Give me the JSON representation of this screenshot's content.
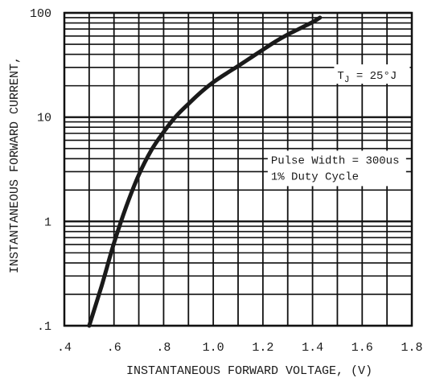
{
  "chart_data": {
    "type": "line",
    "title": "",
    "xlabel": "INSTANTANEOUS FORWARD VOLTAGE, (V)",
    "ylabel": "INSTANTANEOUS FORWARD CURRENT,",
    "x_scale": "linear",
    "y_scale": "log",
    "xlim": [
      0.4,
      1.8
    ],
    "ylim": [
      0.1,
      100
    ],
    "x_ticks": [
      0.4,
      0.6,
      0.8,
      1.0,
      1.2,
      1.4,
      1.6,
      1.8
    ],
    "x_tick_labels": [
      ".4",
      ".6",
      ".8",
      "1.0",
      "1.2",
      "1.4",
      "1.6",
      "1.8"
    ],
    "y_ticks": [
      0.1,
      1,
      10,
      100
    ],
    "y_tick_labels": [
      ".1",
      "1",
      "10",
      "100"
    ],
    "grid": true,
    "series": [
      {
        "color": "#1a1a1a",
        "x": [
          0.5,
          0.55,
          0.6,
          0.65,
          0.7,
          0.75,
          0.8,
          0.85,
          0.9,
          0.95,
          1.0,
          1.05,
          1.1,
          1.15,
          1.2,
          1.25,
          1.3,
          1.35,
          1.4,
          1.43
        ],
        "y": [
          0.1,
          0.24,
          0.62,
          1.4,
          2.8,
          4.8,
          7.2,
          10.2,
          13.4,
          17.3,
          21.6,
          26.0,
          30.9,
          37.0,
          44.3,
          53.0,
          62.0,
          71.0,
          81.5,
          90.0
        ]
      }
    ],
    "annotations": [
      {
        "id": "tj",
        "text": "T",
        "subscript": "J",
        "suffix": " = 25°J",
        "x": 1.5,
        "y": 25
      },
      {
        "id": "pulse",
        "lines": [
          "Pulse Width = 300us",
          "1% Duty Cycle"
        ],
        "x": 1.2,
        "y": 2.7
      }
    ]
  }
}
